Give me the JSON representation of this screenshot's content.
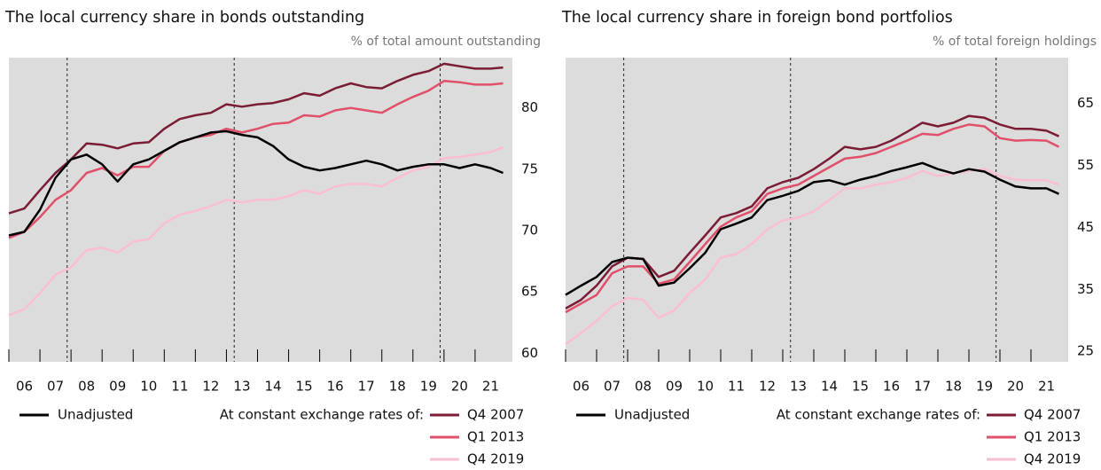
{
  "chart_data": [
    {
      "type": "line",
      "title": "The local currency share in bonds outstanding",
      "y_label": "% of total amount outstanding",
      "x": [
        2006.0,
        2006.5,
        2007.0,
        2007.5,
        2008.0,
        2008.5,
        2009.0,
        2009.5,
        2010.0,
        2010.5,
        2011.0,
        2011.5,
        2012.0,
        2012.5,
        2013.0,
        2013.5,
        2014.0,
        2014.5,
        2015.0,
        2015.5,
        2016.0,
        2016.5,
        2017.0,
        2017.5,
        2018.0,
        2018.5,
        2019.0,
        2019.5,
        2020.0,
        2020.5,
        2021.0,
        2021.5,
        2021.9
      ],
      "xlim": [
        2006,
        2022.2
      ],
      "xticks": [
        {
          "value": 2006.5,
          "label": "06"
        },
        {
          "value": 2007.5,
          "label": "07"
        },
        {
          "value": 2008.5,
          "label": "08"
        },
        {
          "value": 2009.5,
          "label": "09"
        },
        {
          "value": 2010.5,
          "label": "10"
        },
        {
          "value": 2011.5,
          "label": "11"
        },
        {
          "value": 2012.5,
          "label": "12"
        },
        {
          "value": 2013.5,
          "label": "13"
        },
        {
          "value": 2014.5,
          "label": "14"
        },
        {
          "value": 2015.5,
          "label": "15"
        },
        {
          "value": 2016.5,
          "label": "16"
        },
        {
          "value": 2017.5,
          "label": "17"
        },
        {
          "value": 2018.5,
          "label": "18"
        },
        {
          "value": 2019.5,
          "label": "19"
        },
        {
          "value": 2020.5,
          "label": "20"
        },
        {
          "value": 2021.5,
          "label": "21"
        }
      ],
      "ylim": [
        59.3,
        84.1
      ],
      "yticks": [
        60,
        65,
        70,
        75,
        80
      ],
      "vlines": [
        2007.875,
        2013.25,
        2019.875
      ],
      "legend_title": "At constant exchange rates of:",
      "series": [
        {
          "name": "Unadjusted",
          "color": "#000000",
          "values": [
            69.6,
            69.9,
            71.7,
            74.3,
            75.8,
            76.2,
            75.4,
            74.0,
            75.4,
            75.8,
            76.5,
            77.2,
            77.6,
            78.0,
            78.1,
            77.8,
            77.6,
            76.9,
            75.8,
            75.2,
            74.9,
            75.1,
            75.4,
            75.7,
            75.4,
            74.9,
            75.2,
            75.4,
            75.4,
            75.1,
            75.4,
            75.1,
            74.7
          ]
        },
        {
          "name": "Q4 2007",
          "color": "#7b1c35",
          "values": [
            71.4,
            71.8,
            73.3,
            74.7,
            75.8,
            77.1,
            77.0,
            76.7,
            77.1,
            77.2,
            78.3,
            79.1,
            79.4,
            79.6,
            80.3,
            80.1,
            80.3,
            80.4,
            80.7,
            81.2,
            81.0,
            81.6,
            82.0,
            81.7,
            81.6,
            82.2,
            82.7,
            83.0,
            83.6,
            83.4,
            83.2,
            83.2,
            83.3
          ]
        },
        {
          "name": "Q1 2013",
          "color": "#e0506a",
          "values": [
            69.4,
            69.9,
            71.1,
            72.5,
            73.3,
            74.7,
            75.1,
            74.5,
            75.2,
            75.2,
            76.5,
            77.2,
            77.6,
            77.8,
            78.3,
            78.0,
            78.3,
            78.7,
            78.8,
            79.4,
            79.3,
            79.8,
            80.0,
            79.8,
            79.6,
            80.3,
            80.9,
            81.4,
            82.2,
            82.1,
            81.9,
            81.9,
            82.0
          ]
        },
        {
          "name": "Q4 2019",
          "color": "#f9bfd0",
          "values": [
            63.1,
            63.6,
            64.9,
            66.4,
            67.0,
            68.4,
            68.6,
            68.2,
            69.1,
            69.3,
            70.6,
            71.3,
            71.6,
            72.0,
            72.5,
            72.3,
            72.5,
            72.5,
            72.8,
            73.3,
            73.0,
            73.6,
            73.8,
            73.8,
            73.6,
            74.3,
            74.9,
            75.2,
            75.9,
            76.0,
            76.2,
            76.4,
            76.8
          ]
        }
      ]
    },
    {
      "type": "line",
      "title": "The local currency share in foreign bond portfolios",
      "y_label": "% of total foreign holdings",
      "x": [
        2006.0,
        2006.5,
        2007.0,
        2007.5,
        2008.0,
        2008.5,
        2009.0,
        2009.5,
        2010.0,
        2010.5,
        2011.0,
        2011.5,
        2012.0,
        2012.5,
        2013.0,
        2013.5,
        2014.0,
        2014.5,
        2015.0,
        2015.5,
        2016.0,
        2016.5,
        2017.0,
        2017.5,
        2018.0,
        2018.5,
        2019.0,
        2019.5,
        2020.0,
        2020.5,
        2021.0,
        2021.5,
        2021.9
      ],
      "xlim": [
        2006,
        2022.2
      ],
      "xticks": [
        {
          "value": 2006.5,
          "label": "06"
        },
        {
          "value": 2007.5,
          "label": "07"
        },
        {
          "value": 2008.5,
          "label": "08"
        },
        {
          "value": 2009.5,
          "label": "09"
        },
        {
          "value": 2010.5,
          "label": "10"
        },
        {
          "value": 2011.5,
          "label": "11"
        },
        {
          "value": 2012.5,
          "label": "12"
        },
        {
          "value": 2013.5,
          "label": "13"
        },
        {
          "value": 2014.5,
          "label": "14"
        },
        {
          "value": 2015.5,
          "label": "15"
        },
        {
          "value": 2016.5,
          "label": "16"
        },
        {
          "value": 2017.5,
          "label": "17"
        },
        {
          "value": 2018.5,
          "label": "18"
        },
        {
          "value": 2019.5,
          "label": "19"
        },
        {
          "value": 2020.5,
          "label": "20"
        },
        {
          "value": 2021.5,
          "label": "21"
        }
      ],
      "ylim": [
        23.3,
        72.4
      ],
      "yticks": [
        25,
        35,
        45,
        55,
        65
      ],
      "vlines": [
        2007.875,
        2013.25,
        2019.875
      ],
      "legend_title": "At constant exchange rates of:",
      "series": [
        {
          "name": "Unadjusted",
          "color": "#000000",
          "values": [
            34.1,
            35.6,
            37.0,
            39.4,
            40.1,
            39.9,
            35.6,
            36.1,
            38.4,
            40.9,
            44.7,
            45.6,
            46.6,
            49.4,
            50.1,
            50.9,
            52.3,
            52.6,
            51.9,
            52.7,
            53.3,
            54.1,
            54.7,
            55.4,
            54.4,
            53.7,
            54.4,
            54.0,
            52.7,
            51.6,
            51.3,
            51.3,
            50.4
          ]
        },
        {
          "name": "Q4 2007",
          "color": "#7b1c35",
          "values": [
            31.9,
            33.3,
            35.6,
            38.7,
            40.1,
            39.9,
            37.0,
            38.0,
            40.9,
            43.7,
            46.6,
            47.3,
            48.4,
            51.3,
            52.3,
            53.0,
            54.4,
            56.1,
            58.0,
            57.6,
            58.0,
            59.0,
            60.4,
            61.9,
            61.3,
            61.9,
            63.0,
            62.7,
            61.6,
            60.9,
            60.9,
            60.6,
            59.7
          ]
        },
        {
          "name": "Q1 2013",
          "color": "#e0506a",
          "values": [
            31.3,
            32.7,
            34.1,
            37.6,
            38.7,
            38.7,
            35.9,
            36.6,
            39.4,
            42.3,
            45.1,
            46.6,
            47.6,
            50.4,
            51.3,
            51.9,
            53.3,
            54.7,
            56.1,
            56.4,
            57.0,
            58.0,
            59.0,
            60.1,
            59.9,
            60.9,
            61.6,
            61.3,
            59.4,
            59.0,
            59.1,
            59.0,
            58.0
          ]
        },
        {
          "name": "Q4 2019",
          "color": "#f9bfd0",
          "values": [
            26.1,
            28.0,
            29.9,
            32.3,
            33.6,
            33.3,
            30.4,
            31.6,
            34.4,
            36.6,
            40.1,
            40.7,
            42.3,
            44.7,
            46.1,
            46.6,
            47.6,
            49.4,
            51.3,
            51.3,
            51.9,
            52.3,
            53.0,
            54.1,
            53.3,
            53.7,
            54.1,
            54.4,
            53.3,
            52.7,
            52.6,
            52.6,
            51.9
          ]
        }
      ]
    }
  ]
}
